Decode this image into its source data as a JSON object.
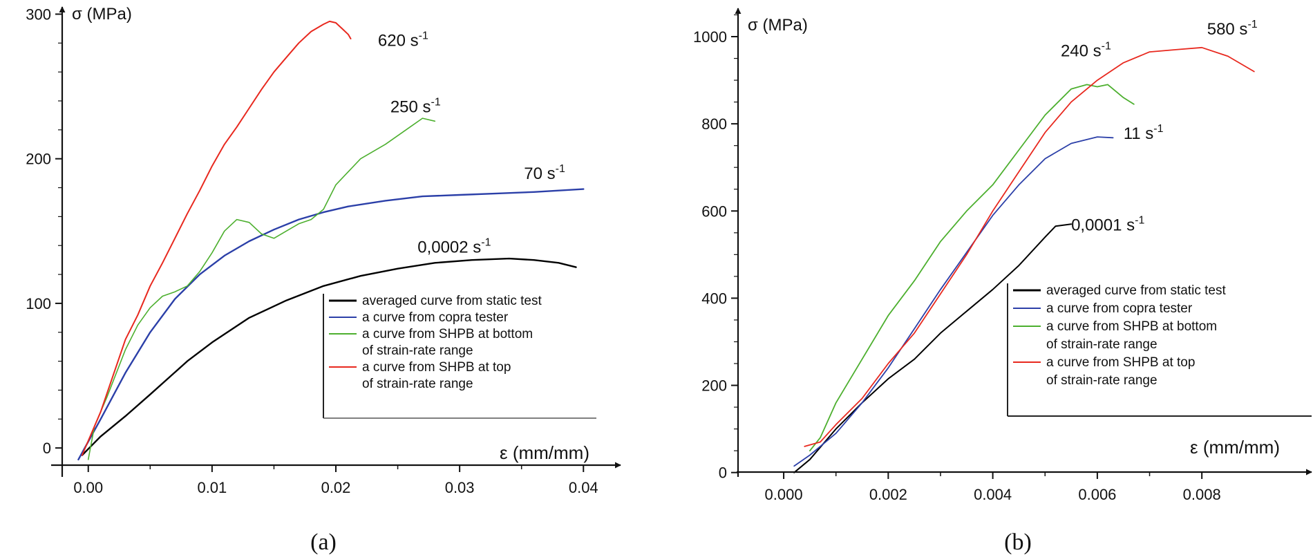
{
  "chart_data": [
    {
      "type": "line",
      "panel_label": "(a)",
      "xlabel": "ε (mm/mm)",
      "ylabel": "σ (MPa)",
      "xlim": [
        -0.003,
        0.043
      ],
      "ylim": [
        -20,
        305
      ],
      "x_ticks": [
        0.0,
        0.01,
        0.02,
        0.03,
        0.04
      ],
      "x_tick_labels": [
        "0.00",
        "0.01",
        "0.02",
        "0.03",
        "0.04"
      ],
      "y_ticks": [
        0,
        100,
        200,
        300
      ],
      "y_tick_labels": [
        "0",
        "100",
        "200",
        "300"
      ],
      "grid": false,
      "legend_position": "lower-right",
      "legend": [
        {
          "label": "averaged curve from static test",
          "color": "#000000"
        },
        {
          "label": "a curve from copra tester",
          "color": "#2b3fa8"
        },
        {
          "label": "a curve from SHPB at bottom",
          "label2": "of strain-rate range",
          "color": "#4caf2e"
        },
        {
          "label": "a curve from SHPB at top",
          "label2": "of strain-rate range",
          "color": "#e8281e"
        }
      ],
      "series": [
        {
          "name": "averaged curve from static test",
          "color": "#000000",
          "width": 2.4,
          "x": [
            -0.0005,
            0.001,
            0.003,
            0.005,
            0.008,
            0.01,
            0.013,
            0.016,
            0.019,
            0.022,
            0.025,
            0.028,
            0.031,
            0.034,
            0.036,
            0.038,
            0.0394
          ],
          "y": [
            -5,
            8,
            22,
            37,
            60,
            73,
            90,
            102,
            112,
            119,
            124,
            128,
            130,
            131,
            130,
            128,
            125
          ]
        },
        {
          "name": "a curve from copra tester",
          "color": "#2b3fa8",
          "width": 2.4,
          "x": [
            -0.0008,
            0.001,
            0.003,
            0.005,
            0.007,
            0.009,
            0.011,
            0.013,
            0.015,
            0.017,
            0.019,
            0.021,
            0.024,
            0.027,
            0.03,
            0.033,
            0.036,
            0.04
          ],
          "y": [
            -8,
            20,
            52,
            80,
            103,
            120,
            133,
            143,
            151,
            158,
            163,
            167,
            171,
            174,
            175,
            176,
            177,
            179
          ]
        },
        {
          "name": "a curve from SHPB at bottom of strain-rate range",
          "color": "#4caf2e",
          "width": 1.6,
          "x": [
            0.0,
            0.0005,
            0.0015,
            0.003,
            0.004,
            0.005,
            0.006,
            0.007,
            0.008,
            0.009,
            0.01,
            0.011,
            0.012,
            0.013,
            0.014,
            0.015,
            0.016,
            0.017,
            0.018,
            0.019,
            0.02,
            0.022,
            0.024,
            0.026,
            0.027,
            0.028
          ],
          "y": [
            -8,
            15,
            35,
            68,
            85,
            97,
            105,
            108,
            112,
            122,
            135,
            150,
            158,
            156,
            148,
            145,
            150,
            155,
            158,
            165,
            182,
            200,
            210,
            222,
            228,
            226
          ]
        },
        {
          "name": "a curve from SHPB at top of strain-rate range",
          "color": "#e8281e",
          "width": 2.0,
          "x": [
            -0.0005,
            0.001,
            0.002,
            0.003,
            0.004,
            0.005,
            0.006,
            0.007,
            0.008,
            0.009,
            0.01,
            0.011,
            0.012,
            0.013,
            0.014,
            0.015,
            0.016,
            0.017,
            0.018,
            0.019,
            0.0195,
            0.02,
            0.0205,
            0.021,
            0.0212
          ],
          "y": [
            -5,
            25,
            50,
            75,
            92,
            112,
            128,
            145,
            162,
            178,
            195,
            210,
            222,
            235,
            248,
            260,
            270,
            280,
            288,
            293,
            295,
            294,
            290,
            286,
            283
          ]
        }
      ],
      "annotations": [
        {
          "text": "620 s",
          "sup": "-1",
          "x": 0.0234,
          "y": 278
        },
        {
          "text": "250 s",
          "sup": "-1",
          "x": 0.0244,
          "y": 232
        },
        {
          "text": "70 s",
          "sup": "-1",
          "x": 0.0352,
          "y": 186
        },
        {
          "text": "0,0002 s",
          "sup": "-1",
          "x": 0.0266,
          "y": 135
        }
      ]
    },
    {
      "type": "line",
      "panel_label": "(b)",
      "xlabel": "ε (mm/mm)",
      "ylabel": "σ (MPa)",
      "xlim": [
        -0.0009,
        0.0101
      ],
      "ylim": [
        -10,
        1065
      ],
      "x_ticks": [
        0.0,
        0.002,
        0.004,
        0.006,
        0.008
      ],
      "x_tick_labels": [
        "0.000",
        "0.002",
        "0.004",
        "0.006",
        "0.008"
      ],
      "y_ticks": [
        0,
        200,
        400,
        600,
        800,
        1000
      ],
      "y_tick_labels": [
        "0",
        "200",
        "400",
        "600",
        "800",
        "1000"
      ],
      "grid": false,
      "legend_position": "lower-right",
      "legend": [
        {
          "label": "averaged curve from static test",
          "color": "#000000"
        },
        {
          "label": "a curve from copra tester",
          "color": "#2b3fa8"
        },
        {
          "label": "a curve from SHPB at bottom",
          "label2": "of strain-rate range",
          "color": "#4caf2e"
        },
        {
          "label": "a curve from SHPB at top",
          "label2": "of strain-rate range",
          "color": "#e8281e"
        }
      ],
      "series": [
        {
          "name": "averaged curve from static test",
          "color": "#000000",
          "width": 2.0,
          "x": [
            0.0002,
            0.0005,
            0.001,
            0.0015,
            0.002,
            0.0025,
            0.003,
            0.0035,
            0.004,
            0.0045,
            0.005,
            0.0052,
            0.0055
          ],
          "y": [
            0,
            30,
            100,
            160,
            215,
            260,
            320,
            370,
            420,
            475,
            540,
            565,
            570
          ]
        },
        {
          "name": "a curve from copra tester",
          "color": "#2b3fa8",
          "width": 1.8,
          "x": [
            0.0002,
            0.0005,
            0.001,
            0.0015,
            0.002,
            0.0025,
            0.003,
            0.0035,
            0.004,
            0.0045,
            0.005,
            0.0055,
            0.006,
            0.0063
          ],
          "y": [
            15,
            40,
            90,
            160,
            240,
            330,
            420,
            505,
            590,
            660,
            720,
            755,
            770,
            768
          ]
        },
        {
          "name": "a curve from SHPB at bottom of strain-rate range",
          "color": "#4caf2e",
          "width": 1.8,
          "x": [
            0.0005,
            0.0007,
            0.001,
            0.0015,
            0.002,
            0.0025,
            0.003,
            0.0035,
            0.004,
            0.0045,
            0.005,
            0.0055,
            0.0058,
            0.006,
            0.0062,
            0.0065,
            0.0067
          ],
          "y": [
            50,
            80,
            160,
            260,
            360,
            440,
            530,
            600,
            660,
            740,
            820,
            880,
            890,
            885,
            890,
            860,
            845
          ]
        },
        {
          "name": "a curve from SHPB at top of strain-rate range",
          "color": "#e8281e",
          "width": 1.8,
          "x": [
            0.0004,
            0.0007,
            0.001,
            0.0015,
            0.002,
            0.0025,
            0.003,
            0.0035,
            0.004,
            0.0045,
            0.005,
            0.0055,
            0.006,
            0.0065,
            0.007,
            0.0075,
            0.008,
            0.0085,
            0.009
          ],
          "y": [
            60,
            70,
            110,
            170,
            250,
            320,
            410,
            500,
            600,
            690,
            780,
            850,
            900,
            940,
            965,
            970,
            975,
            955,
            920
          ]
        }
      ],
      "annotations": [
        {
          "text": "580 s",
          "sup": "-1",
          "x": 0.0081,
          "y": 1005
        },
        {
          "text": "240 s",
          "sup": "-1",
          "x": 0.0053,
          "y": 955
        },
        {
          "text": "11 s",
          "sup": "-1",
          "x": 0.0065,
          "y": 765
        },
        {
          "text": "0,0001 s",
          "sup": "-1",
          "x": 0.0055,
          "y": 555
        }
      ]
    }
  ]
}
